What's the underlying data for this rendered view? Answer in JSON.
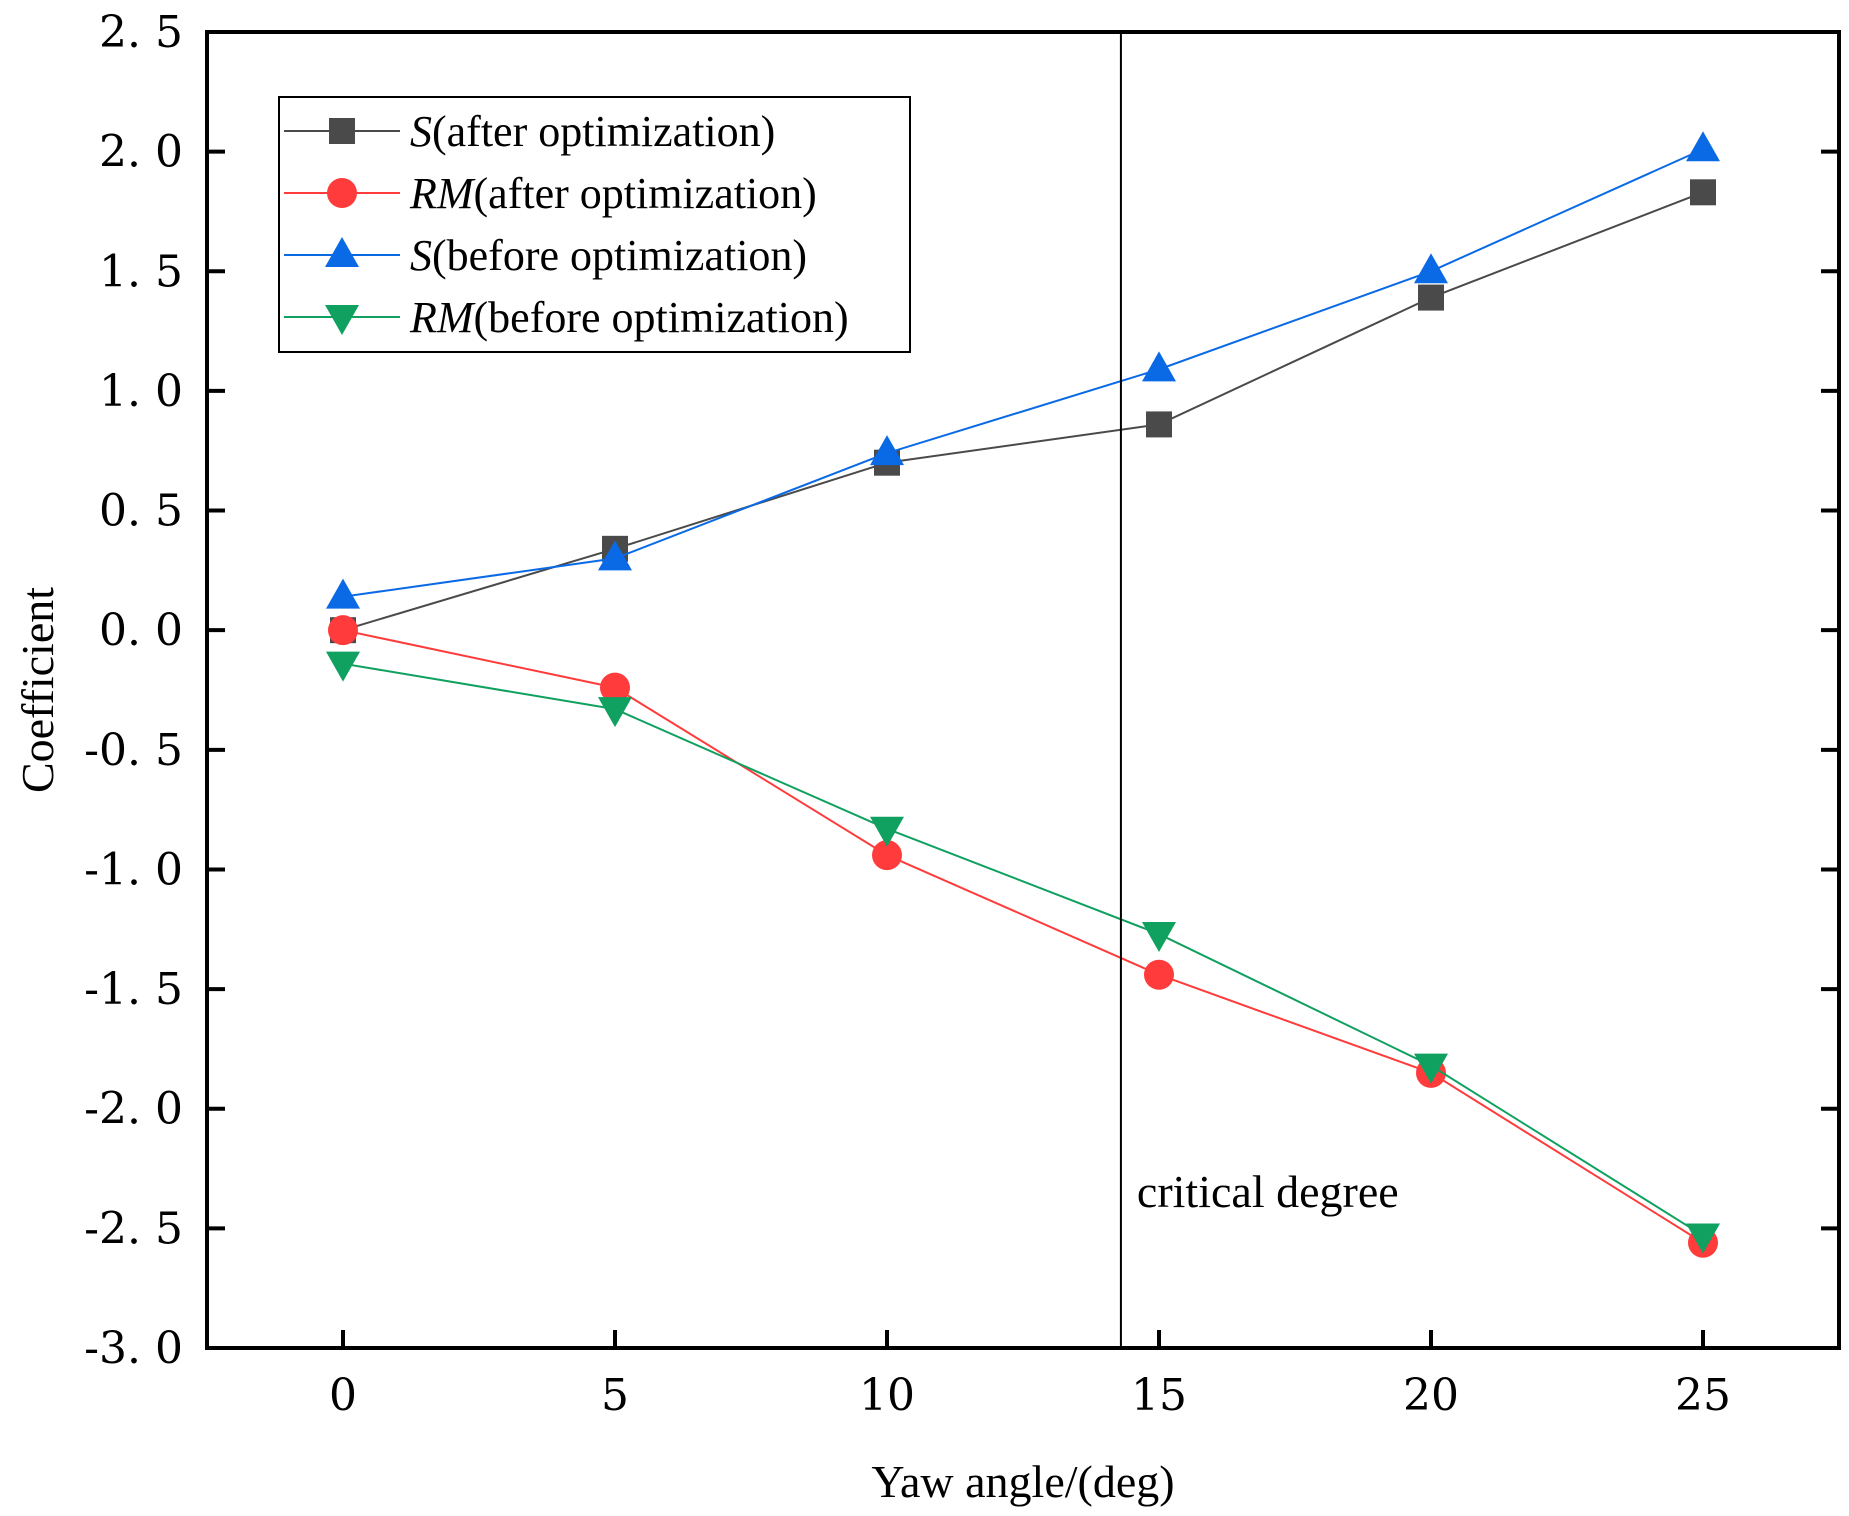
{
  "chart_data": {
    "type": "line",
    "title": "",
    "xlabel": "Yaw angle/(deg)",
    "ylabel": "Coefficient",
    "x": [
      0,
      5,
      10,
      15,
      20,
      25
    ],
    "xlim": [
      -2.5,
      27.5
    ],
    "ylim": [
      -3.0,
      2.5
    ],
    "xticks": [
      0,
      5,
      10,
      15,
      20,
      25
    ],
    "xtick_labels": [
      "0",
      "5",
      "10",
      "15",
      "20",
      "25"
    ],
    "yticks": [
      -3.0,
      -2.5,
      -2.0,
      -1.5,
      -1.0,
      -0.5,
      0.0,
      0.5,
      1.0,
      1.5,
      2.0,
      2.5
    ],
    "ytick_labels": [
      "-3. 0",
      "-2. 5",
      "-2. 0",
      "-1. 5",
      "-1. 0",
      "-0. 5",
      "0. 0",
      "0. 5",
      "1. 0",
      "1. 5",
      "2. 0",
      "2. 5"
    ],
    "grid": false,
    "legend_position": "top-left",
    "series": [
      {
        "name_italic": "S",
        "name_rest": "(after optimization)",
        "marker": "square",
        "color": "#4a4a4a",
        "values": [
          0.0,
          0.34,
          0.7,
          0.86,
          1.39,
          1.83
        ]
      },
      {
        "name_italic": "RM",
        "name_rest": "(after optimization)",
        "marker": "circle",
        "color": "#ff3b3b",
        "values": [
          0.0,
          -0.24,
          -0.94,
          -1.44,
          -1.85,
          -2.56
        ]
      },
      {
        "name_italic": "S",
        "name_rest": "(before optimization)",
        "marker": "triangle-up",
        "color": "#0a6ae6",
        "values": [
          0.14,
          0.3,
          0.74,
          1.09,
          1.5,
          2.01
        ]
      },
      {
        "name_italic": "RM",
        "name_rest": "(before optimization)",
        "marker": "triangle-down",
        "color": "#10a060",
        "values": [
          -0.14,
          -0.33,
          -0.83,
          -1.27,
          -1.82,
          -2.53
        ]
      }
    ],
    "annotations": [
      {
        "type": "vline",
        "x": 14.3,
        "label": "critical degree"
      }
    ]
  }
}
